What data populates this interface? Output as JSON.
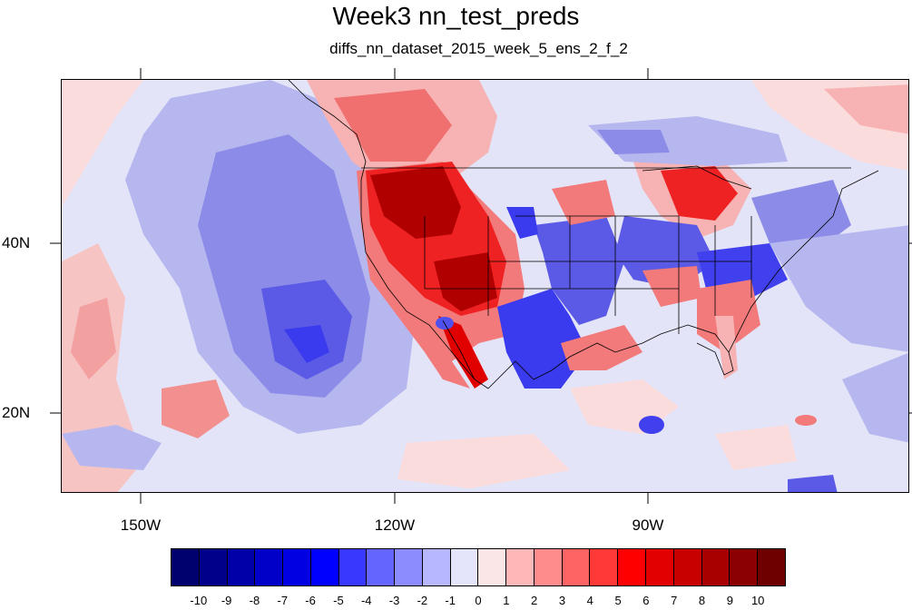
{
  "title": "Week3 nn_test_preds",
  "subtitle": "diffs_nn_dataset_2015_week_5_ens_2_f_2",
  "lat_labels": [
    "40N",
    "20N"
  ],
  "lon_labels": [
    "150W",
    "120W",
    "90W"
  ],
  "colorbar": {
    "labels": [
      "-10",
      "-9",
      "-8",
      "-7",
      "-6",
      "-5",
      "-4",
      "-3",
      "-2",
      "-1",
      "0",
      "1",
      "2",
      "3",
      "4",
      "5",
      "6",
      "7",
      "8",
      "9",
      "10"
    ],
    "colors": [
      "#00006e",
      "#00008b",
      "#0000a8",
      "#0000c8",
      "#0000e3",
      "#0000ff",
      "#3838ff",
      "#6464ff",
      "#8c8cff",
      "#b7b7ff",
      "#e4e4fa",
      "#fae6e6",
      "#ffb7b7",
      "#ff8c8c",
      "#ff6464",
      "#ff3838",
      "#ff0000",
      "#e30000",
      "#c80000",
      "#a80000",
      "#8b0000",
      "#6e0000"
    ]
  },
  "colors": {
    "background_pale_blue": "#dcdcf8",
    "light_blue": "#b3b3f0",
    "medium_blue": "#8c8ce8",
    "blue": "#5a5ae6",
    "deep_blue": "#1e1ee8",
    "pale_red": "#fadcdc",
    "light_red": "#f7b3b3",
    "medium_red": "#f07878",
    "red": "#ee2222",
    "deep_red": "#b00000"
  }
}
